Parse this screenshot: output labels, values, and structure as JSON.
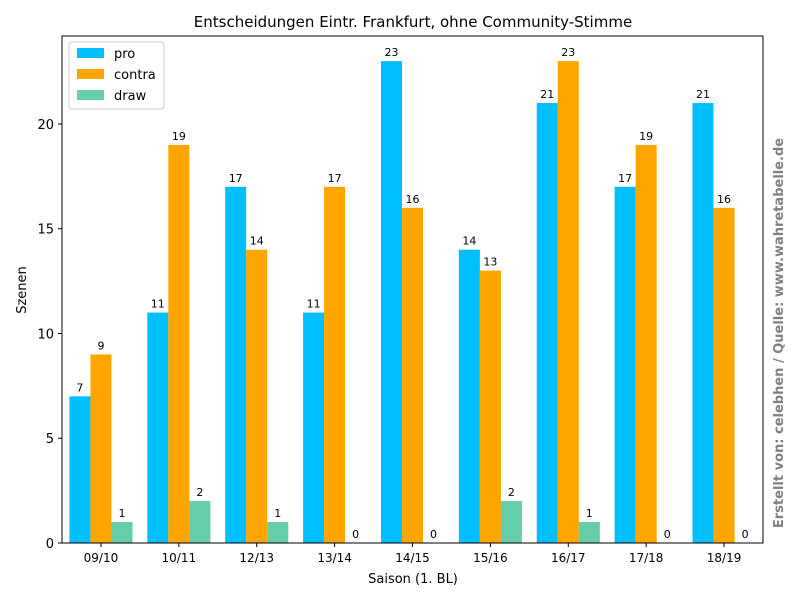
{
  "chart_data": {
    "type": "bar",
    "title": "Entscheidungen Eintr. Frankfurt, ohne Community-Stimme",
    "xlabel": "Saison (1. BL)",
    "ylabel": "Szenen",
    "categories": [
      "09/10",
      "10/11",
      "12/13",
      "13/14",
      "14/15",
      "15/16",
      "16/17",
      "17/18",
      "18/19"
    ],
    "series": [
      {
        "name": "pro",
        "color": "#00bfff",
        "values": [
          7,
          11,
          17,
          11,
          23,
          14,
          21,
          17,
          21
        ]
      },
      {
        "name": "contra",
        "color": "#ffa500",
        "values": [
          9,
          19,
          14,
          17,
          16,
          13,
          23,
          19,
          16
        ]
      },
      {
        "name": "draw",
        "color": "#66cdaa",
        "values": [
          1,
          2,
          1,
          0,
          0,
          2,
          1,
          0,
          0
        ]
      }
    ],
    "ylim": [
      0,
      24.2
    ],
    "yticks": [
      0,
      5,
      10,
      15,
      20
    ],
    "legend_position": "top-left",
    "grid": false
  },
  "credit": "Erstellt von: celebhen / Quelle: www.wahretabelle.de",
  "credit_color": "#808080"
}
